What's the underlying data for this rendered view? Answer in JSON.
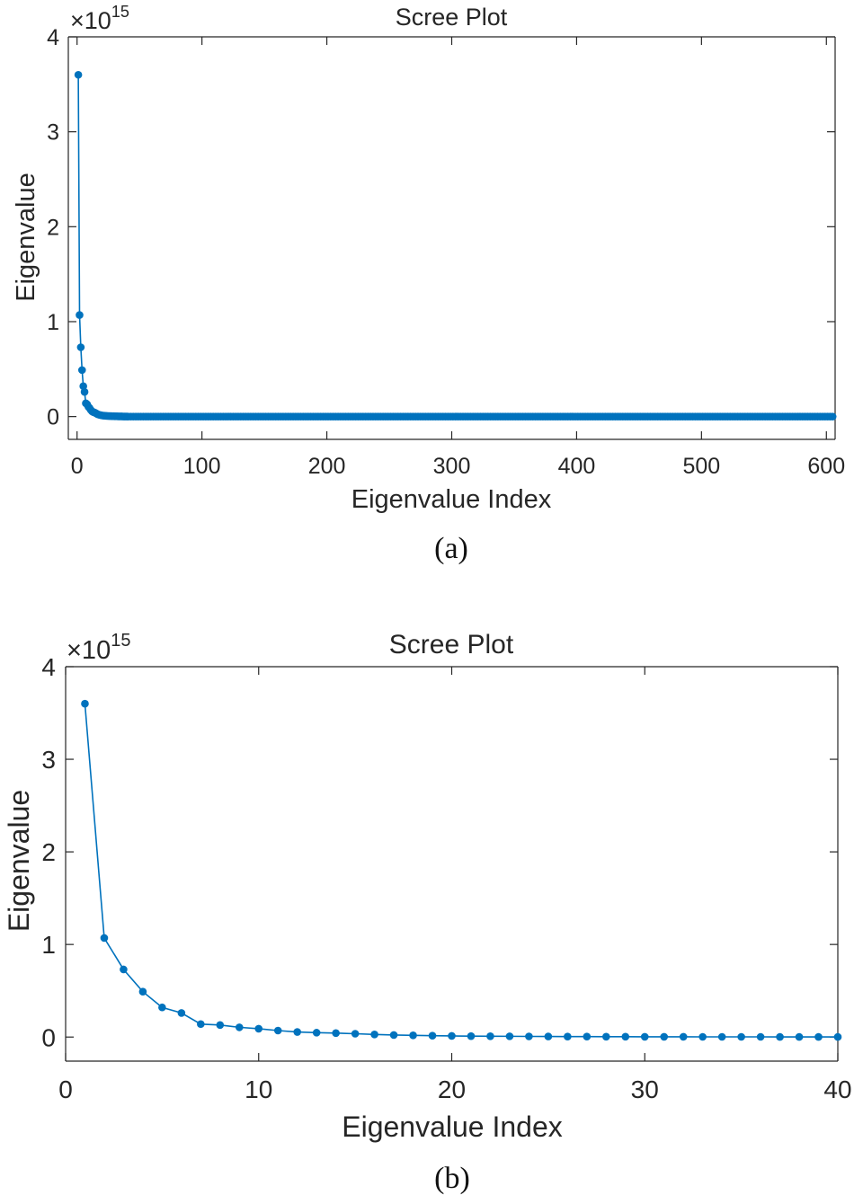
{
  "chart_data": [
    {
      "id": "a",
      "type": "line",
      "title": "Scree Plot",
      "xlabel": "Eigenvalue Index",
      "ylabel": "Eigenvalue",
      "y_multiplier": "×10",
      "y_exponent": "15",
      "caption": "(a)",
      "xlim": [
        -7,
        607
      ],
      "ylim": [
        -0.24,
        4
      ],
      "xticks": [
        0,
        100,
        200,
        300,
        400,
        500,
        600
      ],
      "xtick_labels": [
        "0",
        "100",
        "200",
        "300",
        "400",
        "500",
        "600"
      ],
      "yticks": [
        0,
        1,
        2,
        3,
        4
      ],
      "ytick_labels": [
        "0",
        "1",
        "2",
        "3",
        "4"
      ],
      "grid": false,
      "markers": true,
      "color": "#0072BD",
      "head_x": [
        1,
        2,
        3,
        4,
        5,
        6,
        7,
        8,
        9,
        10,
        11,
        12,
        13,
        14,
        15,
        16,
        17,
        18,
        19,
        20,
        21,
        22,
        23,
        24,
        25,
        26,
        27,
        28,
        29,
        30,
        31,
        32,
        33,
        34,
        35,
        36,
        37,
        38,
        39,
        40
      ],
      "head_values": [
        3.6,
        1.07,
        0.73,
        0.49,
        0.32,
        0.26,
        0.14,
        0.13,
        0.105,
        0.09,
        0.07,
        0.055,
        0.047,
        0.043,
        0.036,
        0.028,
        0.022,
        0.018,
        0.015,
        0.012,
        0.01,
        0.009,
        0.008,
        0.007,
        0.006,
        0.005,
        0.005,
        0.004,
        0.004,
        0.003,
        0.003,
        0.003,
        0.002,
        0.002,
        0.002,
        0.002,
        0.001,
        0.001,
        0.001,
        0.001
      ],
      "tail_range": [
        41,
        606
      ],
      "tail_step": 2,
      "tail_value": 0.0
    },
    {
      "id": "b",
      "type": "line",
      "title": "Scree Plot",
      "xlabel": "Eigenvalue Index",
      "ylabel": "Eigenvalue",
      "y_multiplier": "×10",
      "y_exponent": "15",
      "caption": "(b)",
      "xlim": [
        0,
        40
      ],
      "ylim": [
        -0.26,
        4
      ],
      "xticks": [
        0,
        10,
        20,
        30,
        40
      ],
      "xtick_labels": [
        "0",
        "10",
        "20",
        "30",
        "40"
      ],
      "yticks": [
        0,
        1,
        2,
        3,
        4
      ],
      "ytick_labels": [
        "0",
        "1",
        "2",
        "3",
        "4"
      ],
      "grid": false,
      "markers": true,
      "color": "#0072BD",
      "x": [
        1,
        2,
        3,
        4,
        5,
        6,
        7,
        8,
        9,
        10,
        11,
        12,
        13,
        14,
        15,
        16,
        17,
        18,
        19,
        20,
        21,
        22,
        23,
        24,
        25,
        26,
        27,
        28,
        29,
        30,
        31,
        32,
        33,
        34,
        35,
        36,
        37,
        38,
        39,
        40
      ],
      "values": [
        3.6,
        1.07,
        0.73,
        0.49,
        0.32,
        0.26,
        0.14,
        0.13,
        0.105,
        0.09,
        0.07,
        0.055,
        0.047,
        0.043,
        0.036,
        0.028,
        0.022,
        0.018,
        0.015,
        0.012,
        0.01,
        0.009,
        0.008,
        0.007,
        0.006,
        0.005,
        0.005,
        0.004,
        0.004,
        0.003,
        0.003,
        0.003,
        0.002,
        0.002,
        0.002,
        0.002,
        0.001,
        0.001,
        0.001,
        0.001
      ]
    }
  ]
}
